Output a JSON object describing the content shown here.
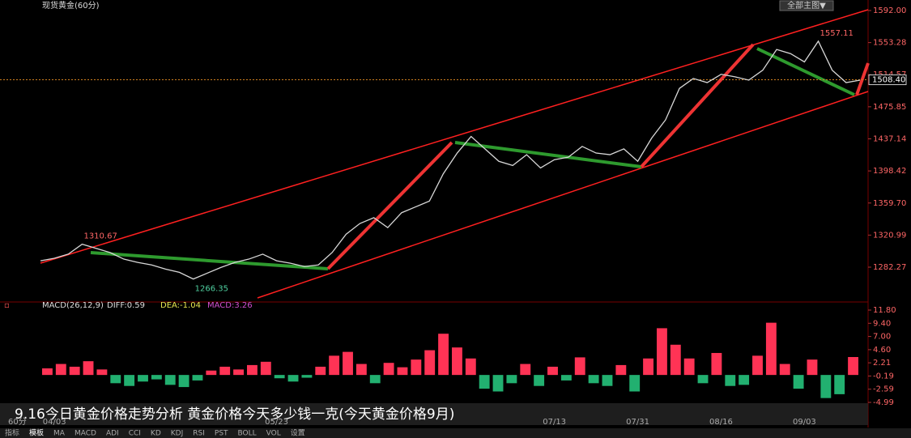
{
  "header": {
    "title": "现货黄金(60分)",
    "menu": "全部主图▼"
  },
  "chart_data": [
    {
      "type": "line",
      "categories": [
        null,
        "04/03",
        null,
        null,
        null,
        null,
        null,
        null,
        null,
        null,
        null,
        null,
        null,
        null,
        null,
        null,
        null,
        "05/23",
        null,
        null,
        null,
        null,
        null,
        null,
        null,
        null,
        null,
        null,
        null,
        null,
        null,
        null,
        null,
        null,
        null,
        null,
        null,
        "07/13",
        null,
        null,
        null,
        null,
        null,
        "07/31",
        null,
        null,
        null,
        null,
        null,
        "08/16",
        null,
        null,
        null,
        null,
        null,
        "09/03",
        null,
        null,
        null,
        null
      ],
      "series": [
        {
          "color": "#d8d8d8",
          "values": [
            1290,
            1293,
            1298,
            1310,
            1305,
            1300,
            1292,
            1288,
            1285,
            1280,
            1276,
            1268,
            1275,
            1282,
            1288,
            1292,
            1298,
            1290,
            1287,
            1283,
            1285,
            1300,
            1322,
            1335,
            1342,
            1330,
            1348,
            1355,
            1362,
            1395,
            1420,
            1440,
            1425,
            1410,
            1405,
            1418,
            1402,
            1412,
            1415,
            1428,
            1420,
            1418,
            1425,
            1410,
            1438,
            1460,
            1498,
            1510,
            1505,
            1515,
            1512,
            1508,
            1520,
            1545,
            1540,
            1530,
            1555,
            1520,
            1505,
            1508
          ]
        }
      ],
      "ylim": [
        1243.2,
        1599.8
      ],
      "yticks": [
        {
          "value": 1592.0,
          "label": "1592.00"
        },
        {
          "value": 1553.28,
          "label": "1553.28"
        },
        {
          "value": 1514.57,
          "label": "1514.57"
        },
        {
          "value": 1475.85,
          "label": "1475.85"
        },
        {
          "value": 1437.14,
          "label": "1437.14"
        },
        {
          "value": 1398.42,
          "label": "1398.42"
        },
        {
          "value": 1359.7,
          "label": "1359.70"
        },
        {
          "value": 1320.99,
          "label": "1320.99"
        },
        {
          "value": 1282.27,
          "label": "1282.27"
        }
      ],
      "current_price": {
        "value": 1508.4,
        "label": "1508.40"
      },
      "annotations": [
        "1310.67",
        "1266.35",
        "1557.11"
      ]
    },
    {
      "type": "bar",
      "title": "MACD(26,12,9)",
      "diff": "DIFF:0.59",
      "dea": "DEA:-1.04",
      "macd": "MACD:3.26",
      "values": [
        1.2,
        2.0,
        1.5,
        2.5,
        1.0,
        -1.5,
        -2.0,
        -1.2,
        -0.8,
        -1.8,
        -2.2,
        -1.0,
        0.8,
        1.5,
        1.0,
        1.8,
        2.4,
        -0.6,
        -1.2,
        -0.5,
        1.5,
        3.5,
        4.2,
        2.0,
        -1.5,
        2.2,
        1.4,
        2.8,
        4.5,
        7.5,
        5.0,
        3.0,
        -2.5,
        -3.0,
        -1.5,
        2.0,
        -2.0,
        1.5,
        -1.0,
        3.2,
        -1.5,
        -2.0,
        1.8,
        -3.0,
        3.0,
        8.5,
        5.5,
        3.0,
        -1.5,
        4.0,
        -2.0,
        -1.8,
        3.5,
        9.5,
        2.0,
        -2.5,
        2.8,
        -4.2,
        -3.5,
        3.26
      ],
      "colors": {
        "positive": "#ff3355",
        "negative": "#22b070"
      },
      "ylim": [
        -6.9,
        12.83
      ],
      "yticks": [
        {
          "value": 11.8,
          "label": "11.80"
        },
        {
          "value": 9.4,
          "label": "9.40"
        },
        {
          "value": 7.0,
          "label": "7.00"
        },
        {
          "value": 4.6,
          "label": "4.60"
        },
        2.21,
        -0.19,
        -2.59,
        -4.99
      ]
    }
  ],
  "caption": "9.16今日黄金价格走势分析 黄金价格今天多少钱一克(今天黄金价格9月)",
  "period": "60分",
  "toolbar": [
    "指标",
    "模板",
    "MA",
    "MACD",
    "ADI",
    "CCI",
    "KD",
    "KDJ",
    "RSI",
    "PST",
    "BOLL",
    "VOL",
    "设置"
  ]
}
